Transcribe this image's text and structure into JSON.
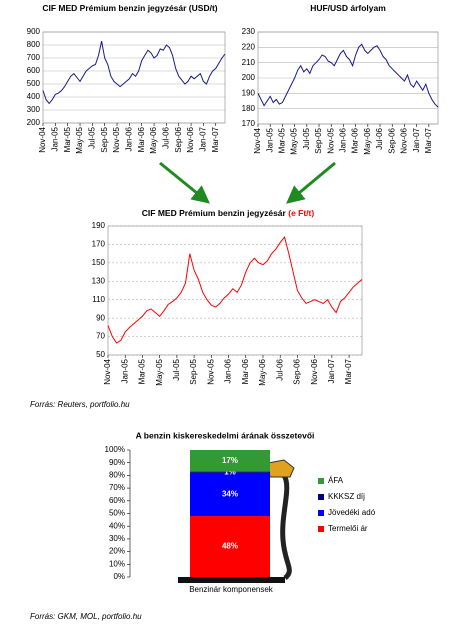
{
  "chart_data": [
    {
      "type": "line",
      "title": "CIF MED Prémium benzin jegyzésár (USD/t)",
      "categories": [
        "Nov-04",
        null,
        null,
        null,
        "Jan-05",
        null,
        null,
        null,
        "Mar-05",
        null,
        null,
        null,
        "May-05",
        null,
        null,
        null,
        "Jul-05",
        null,
        null,
        null,
        "Sep-05",
        null,
        null,
        null,
        "Nov-05",
        null,
        null,
        null,
        "Jan-06",
        null,
        null,
        null,
        "Mar-06",
        null,
        null,
        null,
        "May-06",
        null,
        null,
        null,
        "Jul-06",
        null,
        null,
        null,
        "Sep-06",
        null,
        null,
        null,
        "Nov-06",
        null,
        null,
        null,
        "Jan-07",
        null,
        null,
        null,
        "Mar-07",
        null,
        null,
        null
      ],
      "series": [
        {
          "color": "#1a1a8c",
          "values": [
            450,
            380,
            350,
            380,
            420,
            430,
            450,
            480,
            520,
            560,
            580,
            550,
            520,
            560,
            600,
            620,
            640,
            650,
            720,
            830,
            700,
            650,
            560,
            520,
            500,
            480,
            500,
            520,
            540,
            580,
            560,
            600,
            680,
            720,
            760,
            740,
            700,
            720,
            770,
            760,
            800,
            780,
            720,
            620,
            560,
            530,
            500,
            520,
            560,
            540,
            560,
            580,
            520,
            500,
            560,
            600,
            620,
            660,
            700,
            730
          ]
        }
      ],
      "ylim": [
        200,
        900
      ],
      "yticks": [
        200,
        300,
        400,
        500,
        600,
        700,
        800,
        900
      ],
      "grid": true
    },
    {
      "type": "line",
      "title": "HUF/USD árfolyam",
      "categories": [
        "Nov-04",
        null,
        null,
        null,
        "Jan-05",
        null,
        null,
        null,
        "Mar-05",
        null,
        null,
        null,
        "May-05",
        null,
        null,
        null,
        "Jul-05",
        null,
        null,
        null,
        "Sep-05",
        null,
        null,
        null,
        "Nov-05",
        null,
        null,
        null,
        "Jan-06",
        null,
        null,
        null,
        "Mar-06",
        null,
        null,
        null,
        "May-06",
        null,
        null,
        null,
        "Jul-06",
        null,
        null,
        null,
        "Sep-06",
        null,
        null,
        null,
        "Nov-06",
        null,
        null,
        null,
        "Jan-07",
        null,
        null,
        null,
        "Mar-07",
        null,
        null,
        null
      ],
      "series": [
        {
          "color": "#1a1a8c",
          "values": [
            190,
            186,
            182,
            185,
            188,
            184,
            186,
            183,
            184,
            188,
            192,
            196,
            200,
            205,
            208,
            204,
            206,
            203,
            208,
            210,
            212,
            215,
            214,
            211,
            210,
            208,
            212,
            216,
            218,
            214,
            212,
            208,
            215,
            220,
            222,
            218,
            216,
            218,
            220,
            221,
            218,
            214,
            212,
            208,
            206,
            204,
            202,
            200,
            198,
            202,
            196,
            194,
            198,
            195,
            192,
            196,
            190,
            186,
            183,
            181
          ]
        }
      ],
      "ylim": [
        170,
        230
      ],
      "yticks": [
        170,
        180,
        190,
        200,
        210,
        220,
        230
      ],
      "grid": true
    },
    {
      "type": "line",
      "title": "CIF MED Prémium benzin jegyzésár",
      "title_suffix": "(e Ft/t)",
      "title_suffix_color": "#ff0000",
      "categories": [
        "Nov-04",
        null,
        null,
        null,
        "Jan-05",
        null,
        null,
        null,
        "Mar-05",
        null,
        null,
        null,
        "May-05",
        null,
        null,
        null,
        "Jul-05",
        null,
        null,
        null,
        "Sep-05",
        null,
        null,
        null,
        "Nov-05",
        null,
        null,
        null,
        "Jan-06",
        null,
        null,
        null,
        "Mar-06",
        null,
        null,
        null,
        "May-06",
        null,
        null,
        null,
        "Jul-06",
        null,
        null,
        null,
        "Sep-06",
        null,
        null,
        null,
        "Nov-06",
        null,
        null,
        null,
        "Jan-07",
        null,
        null,
        null,
        "Mar-07",
        null,
        null,
        null
      ],
      "series": [
        {
          "color": "#ff0000",
          "values": [
            82,
            70,
            63,
            66,
            75,
            80,
            84,
            88,
            92,
            98,
            100,
            96,
            92,
            98,
            105,
            108,
            112,
            118,
            128,
            160,
            142,
            132,
            118,
            110,
            104,
            102,
            106,
            112,
            116,
            122,
            118,
            126,
            140,
            150,
            155,
            150,
            148,
            152,
            160,
            165,
            172,
            178,
            160,
            140,
            120,
            112,
            106,
            108,
            110,
            108,
            106,
            110,
            102,
            96,
            108,
            112,
            118,
            124,
            128,
            132
          ]
        }
      ],
      "ylim": [
        50,
        190
      ],
      "yticks": [
        50,
        70,
        90,
        110,
        130,
        150,
        170,
        190
      ],
      "grid": true
    },
    {
      "type": "stacked_bar",
      "title": "A benzin kiskereskedelmi árának összetevői",
      "categories": [
        "Benzinár komponensek"
      ],
      "series": [
        {
          "name": "Termelői ár",
          "color": "#ff0000",
          "values": [
            48
          ],
          "value_labels": [
            "48%"
          ]
        },
        {
          "name": "Jövedéki adó",
          "color": "#0000ff",
          "values": [
            34
          ],
          "value_labels": [
            "34%"
          ]
        },
        {
          "name": "KKKSZ díj",
          "color": "#000080",
          "values": [
            1
          ],
          "value_labels": [
            "1%"
          ]
        },
        {
          "name": "ÁFA",
          "color": "#339933",
          "values": [
            17
          ],
          "value_labels": [
            "17%"
          ]
        }
      ],
      "ylim": [
        0,
        100
      ],
      "yticks": [
        {
          "value": 0,
          "label": "0%"
        },
        {
          "value": 10,
          "label": "10%"
        },
        {
          "value": 20,
          "label": "20%"
        },
        {
          "value": 30,
          "label": "30%"
        },
        {
          "value": 40,
          "label": "40%"
        },
        {
          "value": 50,
          "label": "50%"
        },
        {
          "value": 60,
          "label": "60%"
        },
        {
          "value": 70,
          "label": "70%"
        },
        {
          "value": 80,
          "label": "80%"
        },
        {
          "value": 90,
          "label": "90%"
        },
        {
          "value": 100,
          "label": "100%"
        }
      ]
    }
  ],
  "sources": [
    "Forrás: Reuters, portfolio.hu",
    "Forrás: GKM, MOL, portfolio.hu"
  ]
}
